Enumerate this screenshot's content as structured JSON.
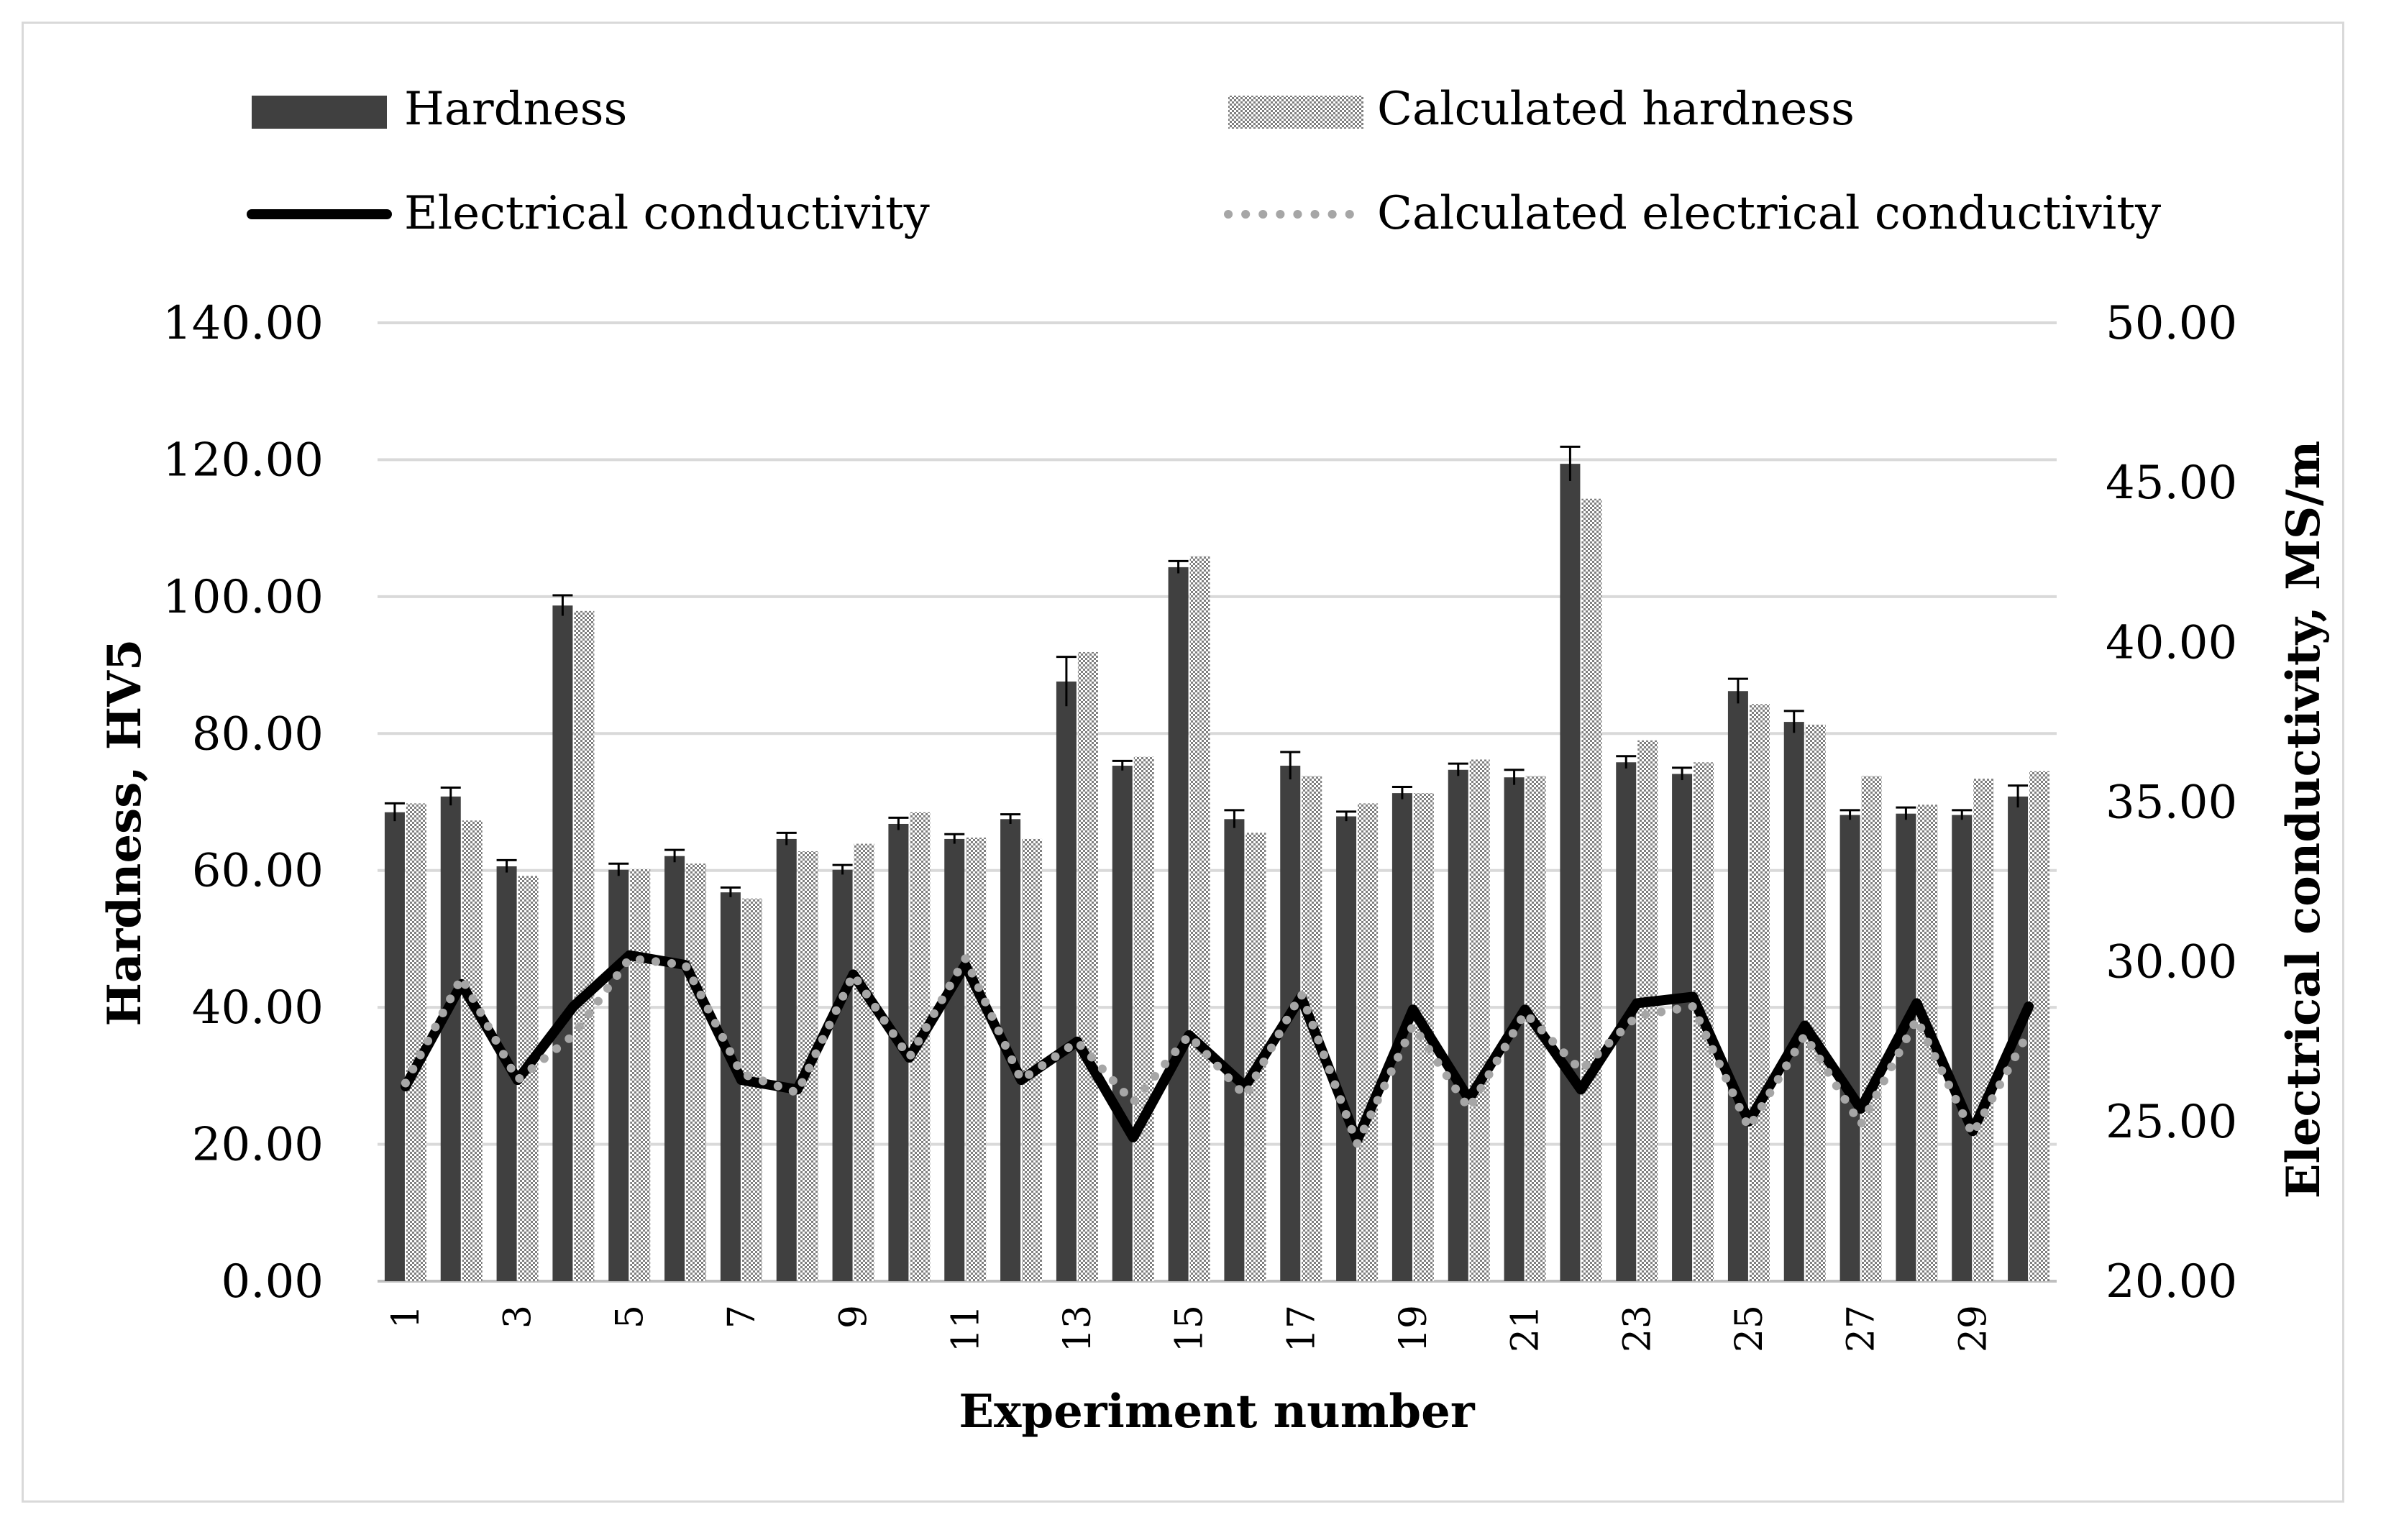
{
  "chart_data": {
    "type": "bar",
    "xlabel": "Experiment number",
    "ylabel": "Hardness, HV5",
    "y2label": "Electrical conductivity, MS/m",
    "ylim": [
      0,
      140
    ],
    "y2lim": [
      20,
      50
    ],
    "yticks": [
      "0.00",
      "20.00",
      "40.00",
      "60.00",
      "80.00",
      "100.00",
      "120.00",
      "140.00"
    ],
    "y2ticks": [
      "20.00",
      "25.00",
      "30.00",
      "35.00",
      "40.00",
      "45.00",
      "50.00"
    ],
    "categories": [
      1,
      2,
      3,
      4,
      5,
      6,
      7,
      8,
      9,
      10,
      11,
      12,
      13,
      14,
      15,
      16,
      17,
      18,
      19,
      20,
      21,
      22,
      23,
      24,
      25,
      26,
      27,
      28,
      29,
      30
    ],
    "xtick_labels": [
      "1",
      "3",
      "5",
      "7",
      "9",
      "11",
      "13",
      "15",
      "17",
      "19",
      "21",
      "23",
      "25",
      "27",
      "29"
    ],
    "legend_position": "top",
    "series": [
      {
        "name": "Hardness",
        "kind": "bar",
        "axis": "left",
        "color": "#404040",
        "values": [
          68.5,
          70.8,
          60.6,
          98.7,
          60.1,
          62.1,
          56.8,
          64.6,
          60.1,
          66.8,
          64.6,
          67.5,
          87.6,
          75.3,
          104.3,
          67.5,
          75.3,
          67.9,
          71.3,
          74.7,
          73.6,
          119.4,
          75.8,
          74.1,
          86.2,
          81.7,
          68.1,
          68.3,
          68.1,
          70.8
        ],
        "errors": [
          1.3,
          1.3,
          0.9,
          1.5,
          0.9,
          0.9,
          0.7,
          0.9,
          0.7,
          0.9,
          0.7,
          0.7,
          3.6,
          0.7,
          0.9,
          1.3,
          2.0,
          0.7,
          0.9,
          0.9,
          1.1,
          2.5,
          0.9,
          0.9,
          1.8,
          1.6,
          0.7,
          0.9,
          0.7,
          1.6
        ]
      },
      {
        "name": "Calculated hardness",
        "kind": "bar",
        "axis": "left",
        "color": "#999999",
        "values": [
          69.8,
          67.3,
          59.2,
          97.9,
          60.2,
          61.0,
          55.9,
          62.8,
          63.9,
          68.5,
          64.8,
          64.6,
          91.9,
          76.6,
          105.9,
          65.5,
          73.8,
          69.8,
          71.3,
          76.2,
          73.8,
          114.3,
          79.0,
          75.8,
          84.3,
          81.3,
          73.8,
          69.6,
          73.4,
          74.5
        ]
      },
      {
        "name": "Electrical conductivity",
        "kind": "line",
        "axis": "right",
        "color": "#000000",
        "values": [
          26.1,
          29.3,
          26.3,
          28.6,
          30.2,
          29.9,
          26.3,
          26.0,
          29.6,
          27.0,
          29.9,
          26.3,
          27.5,
          24.5,
          27.7,
          26.1,
          28.9,
          24.4,
          28.5,
          25.7,
          28.5,
          26.0,
          28.7,
          28.9,
          25.0,
          28.0,
          25.4,
          28.7,
          24.7,
          28.6
        ]
      },
      {
        "name": "Calculated electrical conductivity",
        "kind": "line",
        "axis": "right",
        "color": "#a6a6a6",
        "values": [
          26.2,
          29.5,
          26.3,
          27.7,
          30.1,
          29.9,
          26.5,
          25.9,
          29.6,
          27.0,
          30.1,
          26.3,
          27.5,
          25.6,
          27.7,
          25.8,
          29.0,
          24.3,
          28.0,
          25.4,
          28.4,
          26.6,
          28.3,
          28.6,
          24.8,
          27.7,
          24.9,
          28.2,
          24.6,
          27.8
        ]
      }
    ]
  }
}
